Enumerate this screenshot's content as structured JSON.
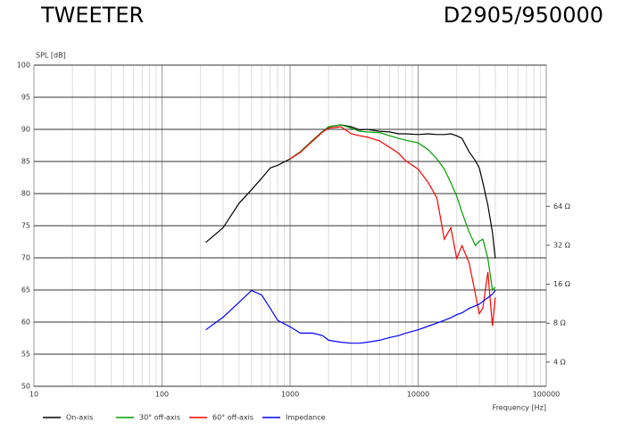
{
  "chart_data": {
    "type": "line",
    "title": "TWEETER",
    "subtitle": "D2905/950000",
    "y_label": "SPL [dB]",
    "x_label": "Frequency [Hz]",
    "log_x": true,
    "log_y2": true,
    "grid": true,
    "xlim": [
      10,
      100000
    ],
    "xticks": [
      10,
      100,
      1000,
      10000,
      100000
    ],
    "xminorticks": [
      20,
      30,
      40,
      50,
      60,
      70,
      80,
      90,
      200,
      300,
      400,
      500,
      600,
      700,
      800,
      900,
      2000,
      3000,
      4000,
      5000,
      6000,
      7000,
      8000,
      9000,
      20000,
      30000,
      40000,
      50000,
      60000,
      70000,
      80000,
      90000
    ],
    "ylim": [
      50,
      100
    ],
    "yticks": [
      50,
      55,
      60,
      65,
      70,
      75,
      80,
      85,
      90,
      95,
      100
    ],
    "y2lim": [
      2.6,
      790
    ],
    "y2ticks": [
      {
        "value": 4,
        "label": "4 Ω"
      },
      {
        "value": 8,
        "label": "8 Ω"
      },
      {
        "value": 16,
        "label": "16 Ω"
      },
      {
        "value": 32,
        "label": "32 Ω"
      },
      {
        "value": 64,
        "label": "64 Ω"
      }
    ],
    "legend": "bottom",
    "x": [
      220,
      300,
      400,
      500,
      600,
      700,
      800,
      1000,
      1200,
      1500,
      1800,
      2000,
      2500,
      3000,
      3500,
      4000,
      5000,
      6000,
      7000,
      8000,
      10000,
      12000,
      14000,
      16000,
      18000,
      20000,
      22000,
      25000,
      28000,
      30000,
      32000,
      35000,
      38000,
      40000
    ],
    "series": [
      {
        "name": "On-axis",
        "color": "#000000",
        "values": [
          72.4,
          74.7,
          78.5,
          80.6,
          82.4,
          84,
          84.4,
          85.4,
          86.5,
          88.3,
          89.7,
          90.4,
          90.7,
          90.4,
          89.9,
          90,
          89.7,
          89.6,
          89.3,
          89.3,
          89.2,
          89.3,
          89.2,
          89.2,
          89.3,
          89,
          88.6,
          86.5,
          85.1,
          84,
          81.7,
          78.2,
          74,
          69.9
        ]
      },
      {
        "name": "30° off-axis",
        "color": "#00a000",
        "values": [
          null,
          null,
          null,
          null,
          null,
          null,
          null,
          85.4,
          86.5,
          88.3,
          89.7,
          90.4,
          90.7,
          90.2,
          89.7,
          89.6,
          89.5,
          89,
          88.6,
          88.3,
          87.9,
          86.8,
          85.4,
          83.8,
          81.7,
          79.6,
          77.1,
          74,
          71.9,
          72.6,
          72.9,
          69.9,
          65,
          65.4
        ]
      },
      {
        "name": "60° off-axis",
        "color": "#ff0000",
        "values": [
          null,
          null,
          null,
          null,
          null,
          null,
          null,
          85.4,
          86.4,
          88.2,
          89.6,
          90.2,
          90.4,
          89.3,
          89,
          88.8,
          88.2,
          87.2,
          86.3,
          85.1,
          83.8,
          81.7,
          79.3,
          72.9,
          74.7,
          69.9,
          71.9,
          69.2,
          64.3,
          61.3,
          62.2,
          67.8,
          59.4,
          63.8
        ]
      },
      {
        "name": "Impedance",
        "color": "#0000ff",
        "axis": "y2",
        "values": [
          7.1,
          8.9,
          11.6,
          14.3,
          13.2,
          10.4,
          8.4,
          7.5,
          6.7,
          6.7,
          6.4,
          5.9,
          5.7,
          5.6,
          5.6,
          5.7,
          5.9,
          6.2,
          6.4,
          6.7,
          7.1,
          7.6,
          8,
          8.4,
          8.8,
          9.3,
          9.6,
          10.4,
          10.9,
          11.2,
          11.8,
          12.6,
          13.4,
          14.3
        ]
      }
    ]
  }
}
